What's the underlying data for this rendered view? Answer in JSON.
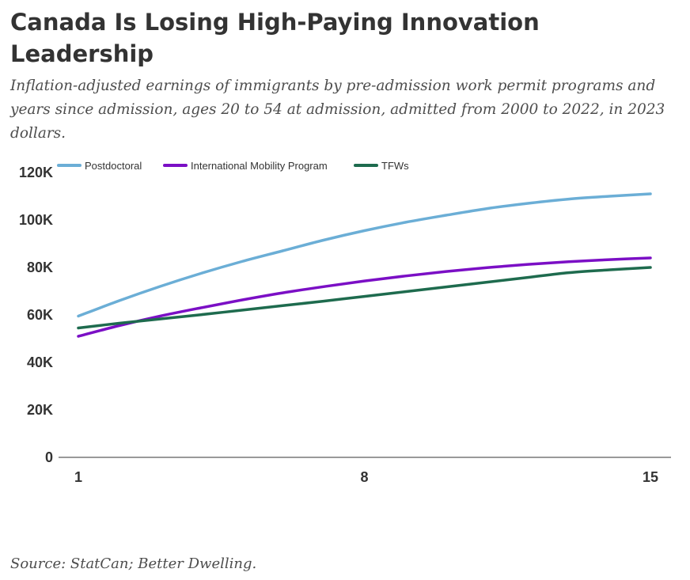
{
  "title": "Canada Is Losing High-Paying Innovation Leadership",
  "subtitle": "Inflation-adjusted earnings of immigrants by pre-admission work permit programs and years since admission, ages 20 to 54 at admission, admitted from 2000 to 2022, in 2023 dollars.",
  "source": "Source: StatCan; Better Dwelling.",
  "chart_data": {
    "type": "line",
    "x": [
      1,
      2,
      3,
      4,
      5,
      6,
      7,
      8,
      9,
      10,
      11,
      12,
      13,
      14,
      15
    ],
    "x_ticks": [
      1,
      8,
      15
    ],
    "x_tick_labels": [
      "1",
      "8",
      "15"
    ],
    "y_ticks": [
      0,
      20000,
      40000,
      60000,
      80000,
      100000,
      120000
    ],
    "y_tick_labels": [
      "0",
      "20K",
      "40K",
      "60K",
      "80K",
      "100K",
      "120K"
    ],
    "xlim": [
      1,
      15
    ],
    "ylim": [
      0,
      120000
    ],
    "grid": false,
    "legend_position": "top-left",
    "series": [
      {
        "name": "Postdoctoral",
        "color": "#6baed6",
        "values": [
          59500,
          66000,
          72000,
          77500,
          82500,
          87000,
          91500,
          95500,
          99000,
          102000,
          104800,
          107000,
          108800,
          110000,
          111000
        ]
      },
      {
        "name": "International Mobility Program",
        "color": "#7b0fc5",
        "values": [
          51000,
          55500,
          59500,
          63000,
          66300,
          69300,
          71900,
          74300,
          76400,
          78300,
          79900,
          81300,
          82400,
          83300,
          84000
        ]
      },
      {
        "name": "TFWs",
        "color": "#1e6b4e",
        "values": [
          54500,
          56500,
          58300,
          60100,
          62000,
          63900,
          65800,
          67800,
          69800,
          71800,
          73800,
          75800,
          77800,
          79000,
          80000
        ]
      }
    ]
  }
}
